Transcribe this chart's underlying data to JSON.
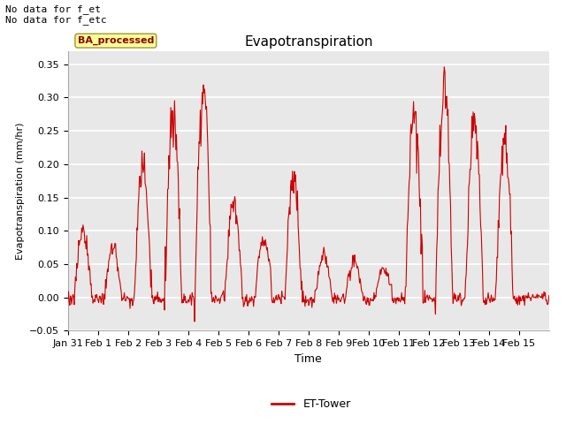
{
  "title": "Evapotranspiration",
  "xlabel": "Time",
  "ylabel": "Evapotranspiration (mm/hr)",
  "ylim": [
    -0.05,
    0.37
  ],
  "yticks": [
    -0.05,
    0.0,
    0.05,
    0.1,
    0.15,
    0.2,
    0.25,
    0.3,
    0.35
  ],
  "xlabels": [
    "Jan 31",
    "Feb 1",
    "Feb 2",
    "Feb 3",
    "Feb 4",
    "Feb 5",
    "Feb 6",
    "Feb 7",
    "Feb 8",
    "Feb 9",
    "Feb 10",
    "Feb 11",
    "Feb 12",
    "Feb 13",
    "Feb 14",
    "Feb 15"
  ],
  "line_color": "#cc0000",
  "line_width": 0.8,
  "bg_color": "#ffffff",
  "plot_bg_color": "#e8e8e8",
  "legend_label": "ET-Tower",
  "legend_line_color": "#cc0000",
  "annotation_text": "No data for f_et\nNo data for f_etc",
  "annotation_fontsize": 8,
  "box_label": "BA_processed",
  "box_color": "#ffff99",
  "box_border_color": "#999933",
  "title_fontsize": 11,
  "ylabel_fontsize": 8,
  "xlabel_fontsize": 9,
  "tick_fontsize": 8
}
